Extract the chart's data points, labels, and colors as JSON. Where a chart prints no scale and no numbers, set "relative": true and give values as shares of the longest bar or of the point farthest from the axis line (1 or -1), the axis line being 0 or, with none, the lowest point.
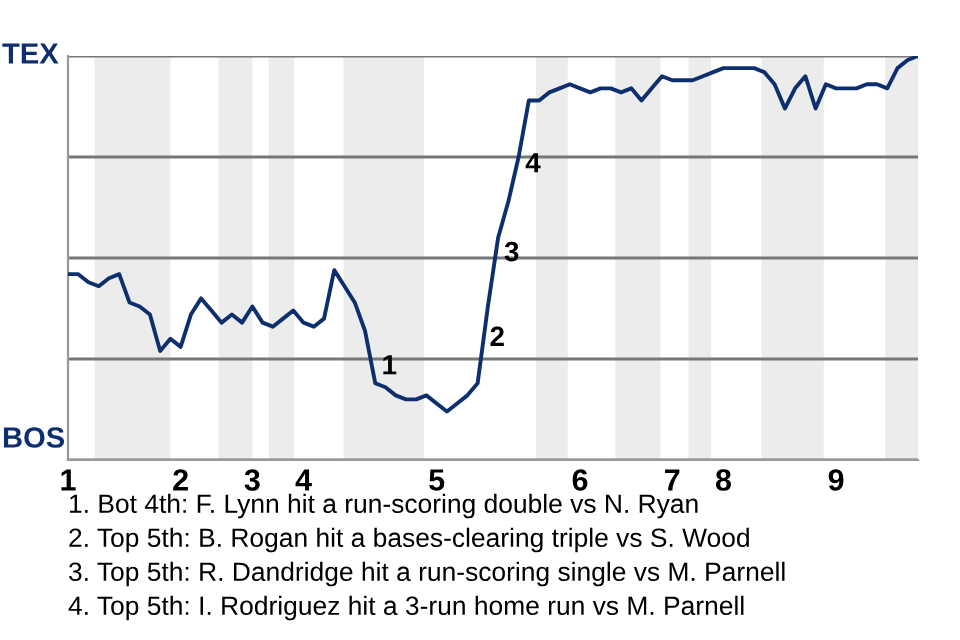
{
  "chart_data": {
    "type": "line",
    "relative": true,
    "categories": [
      "1",
      null,
      null,
      null,
      null,
      null,
      null,
      null,
      null,
      null,
      null,
      "2",
      null,
      null,
      null,
      null,
      null,
      null,
      "3",
      null,
      null,
      null,
      null,
      "4",
      null,
      null,
      null,
      null,
      null,
      null,
      null,
      null,
      null,
      null,
      null,
      null,
      "5",
      null,
      null,
      null,
      null,
      null,
      null,
      null,
      null,
      null,
      null,
      null,
      null,
      null,
      "6",
      null,
      null,
      null,
      null,
      null,
      null,
      null,
      null,
      "7",
      null,
      null,
      null,
      null,
      "8",
      null,
      null,
      null,
      null,
      null,
      null,
      null,
      null,
      null,
      null,
      "9",
      null,
      null,
      null,
      null,
      null,
      null,
      null,
      null
    ],
    "series": [
      {
        "color": "#0d2f6e",
        "values": [
          0.46,
          0.46,
          0.44,
          0.43,
          0.45,
          0.46,
          0.39,
          0.38,
          0.36,
          0.27,
          0.3,
          0.28,
          0.36,
          0.4,
          0.37,
          0.34,
          0.36,
          0.34,
          0.38,
          0.34,
          0.33,
          0.35,
          0.37,
          0.34,
          0.33,
          0.35,
          0.47,
          0.43,
          0.39,
          0.32,
          0.19,
          0.18,
          0.16,
          0.15,
          0.15,
          0.16,
          0.14,
          0.12,
          0.14,
          0.16,
          0.19,
          0.38,
          0.55,
          0.64,
          0.75,
          0.89,
          0.89,
          0.91,
          0.92,
          0.93,
          0.92,
          0.91,
          0.92,
          0.92,
          0.91,
          0.92,
          0.89,
          0.92,
          0.95,
          0.94,
          0.94,
          0.94,
          0.95,
          0.96,
          0.97,
          0.97,
          0.97,
          0.97,
          0.96,
          0.93,
          0.87,
          0.92,
          0.95,
          0.87,
          0.93,
          0.92,
          0.92,
          0.92,
          0.93,
          0.93,
          0.92,
          0.97,
          0.99,
          1.0
        ]
      }
    ],
    "grid": "y",
    "annotations": [
      "TEX",
      "BOS",
      "1",
      "2",
      "3",
      "4",
      "1. Bot 4th: F. Lynn hit a run-scoring double vs N. Ryan",
      "2. Top 5th: B. Rogan hit a bases-clearing triple vs S. Wood",
      "3. Top 5th: R. Dandridge hit a run-scoring single vs M. Parnell",
      "4. Top 5th: I. Rodriguez hit a 3-run home run vs M. Parnell"
    ]
  }
}
